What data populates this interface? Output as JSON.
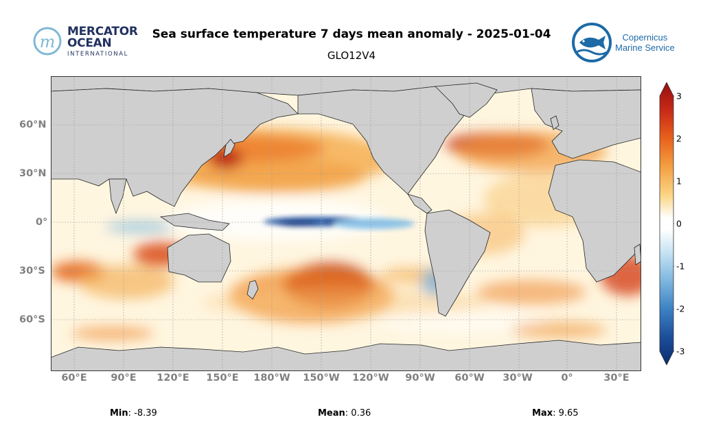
{
  "header": {
    "title": "Sea surface temperature 7 days mean anomaly - 2025-01-04",
    "subtitle": "GLO12V4",
    "mercator_logo": {
      "line1": "MERCATOR",
      "line2": "OCEAN",
      "line3": "INTERNATIONAL"
    },
    "copernicus_logo": {
      "line1": "Copernicus",
      "line2": "Marine Service"
    }
  },
  "map": {
    "projection": "plate-carree",
    "grid": true,
    "x_ticks": [
      "60°E",
      "90°E",
      "120°E",
      "150°E",
      "180°W",
      "150°W",
      "120°W",
      "90°W",
      "60°W",
      "30°W",
      "0°",
      "30°E"
    ],
    "y_ticks": [
      "60°N",
      "30°N",
      "0°",
      "30°S",
      "60°S"
    ],
    "land_color": "#cfcfcf",
    "notable_features": [
      {
        "region": "equatorial central Pacific",
        "anomaly": "strong negative"
      },
      {
        "region": "south-central Pacific",
        "anomaly": "strong positive"
      },
      {
        "region": "north Pacific",
        "anomaly": "positive"
      },
      {
        "region": "north-west Atlantic / Gulf Stream",
        "anomaly": "strong positive"
      },
      {
        "region": "south Indian Ocean",
        "anomaly": "positive"
      }
    ]
  },
  "colorbar": {
    "range": [
      -3,
      3
    ],
    "extend": "both",
    "ticks": [
      "3",
      "2",
      "1",
      "0",
      "-1",
      "-2",
      "-3"
    ],
    "colors": {
      "min": "#0b2b6e",
      "neg2": "#2f6db2",
      "neg1": "#a9d4ee",
      "zero": "#ffffff",
      "pos1": "#fbd585",
      "pos2": "#ef7d1e",
      "max": "#960f10"
    }
  },
  "stats": {
    "min_label": "Min",
    "min_value": ": -8.39",
    "mean_label": "Mean",
    "mean_value": ": 0.36",
    "max_label": "Max",
    "max_value": ": 9.65"
  }
}
